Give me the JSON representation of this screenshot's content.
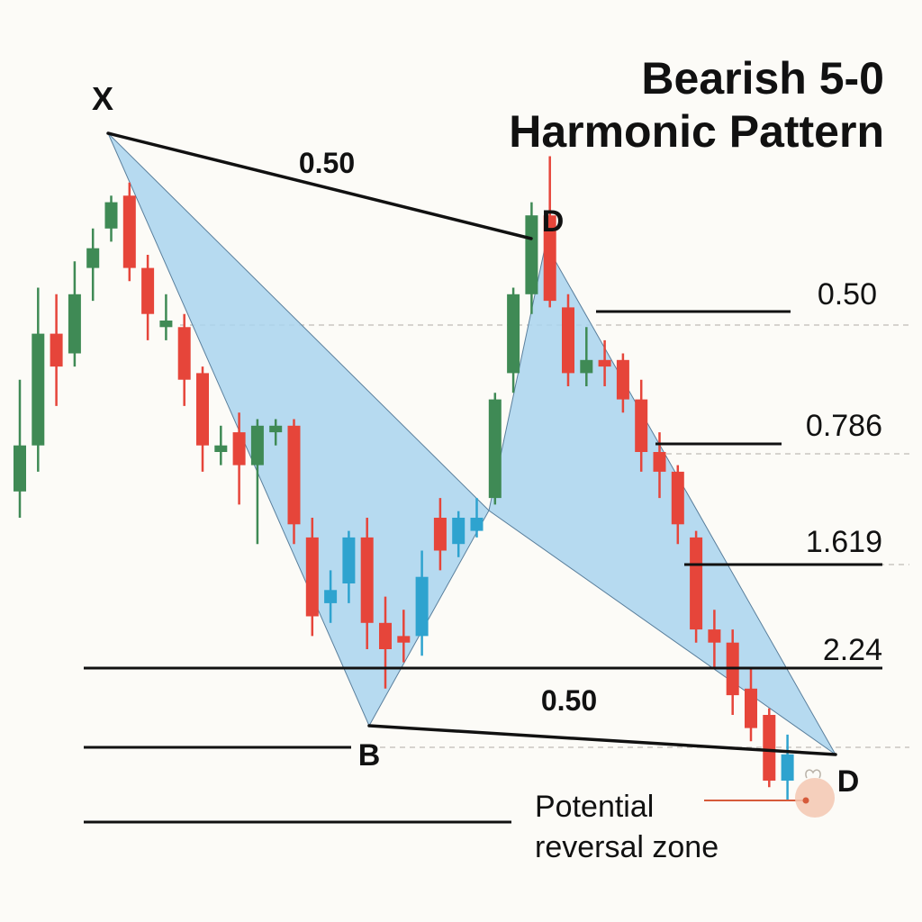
{
  "title": {
    "line1": "Bearish 5-0",
    "line2": "Harmonic Pattern"
  },
  "points": {
    "x": "X",
    "d_top": "D",
    "b": "B",
    "d_bottom": "D"
  },
  "labels": {
    "leg_top": "0.50",
    "leg_bottom": "0.50"
  },
  "ratios": [
    "0.50",
    "0.786",
    "1.619",
    "2.24"
  ],
  "annotation": {
    "line1": "Potential",
    "line2": "reversal zone"
  },
  "colors": {
    "background": "#fcfbf7",
    "bullish": "#3f8a55",
    "bearish": "#e6453a",
    "neutral": "#2ea3cf",
    "pattern_fill": "#a9d3ef",
    "line": "#111111",
    "marker": "#f3c7b1",
    "marker_line": "#d65a3a"
  },
  "chart_data": {
    "type": "candlestick",
    "candles": [
      {
        "type": "bull",
        "o": 4,
        "h": 21,
        "c": 11,
        "l": 0
      },
      {
        "type": "bull",
        "o": 11,
        "h": 35,
        "c": 28,
        "l": 7
      },
      {
        "type": "bear",
        "o": 28,
        "h": 34,
        "c": 23,
        "l": 17
      },
      {
        "type": "bull",
        "o": 25,
        "h": 39,
        "c": 34,
        "l": 23
      },
      {
        "type": "bull",
        "o": 38,
        "h": 44,
        "c": 41,
        "l": 33
      },
      {
        "type": "bull",
        "o": 44,
        "h": 49,
        "c": 48,
        "l": 42
      },
      {
        "type": "bear",
        "o": 49,
        "h": 51,
        "c": 38,
        "l": 36
      },
      {
        "type": "bear",
        "o": 38,
        "h": 40,
        "c": 31,
        "l": 27
      },
      {
        "type": "doji",
        "o": 30,
        "h": 34,
        "c": 29,
        "l": 27
      },
      {
        "type": "bear",
        "o": 29,
        "h": 31,
        "c": 21,
        "l": 17
      },
      {
        "type": "bear",
        "o": 22,
        "h": 23,
        "c": 11,
        "l": 7
      },
      {
        "type": "doji",
        "o": 11,
        "h": 14,
        "c": 10,
        "l": 8
      },
      {
        "type": "bear",
        "o": 13,
        "h": 16,
        "c": 8,
        "l": 2
      },
      {
        "type": "bull",
        "o": 8,
        "h": 15,
        "c": 14,
        "l": -4
      },
      {
        "type": "doji",
        "o": 14,
        "h": 15,
        "c": 13,
        "l": 11
      },
      {
        "type": "bear",
        "o": 14,
        "h": 15,
        "c": -1,
        "l": -4
      },
      {
        "type": "bear",
        "o": -3,
        "h": 0,
        "c": -15,
        "l": -18
      },
      {
        "type": "blue",
        "o": -11,
        "h": -8,
        "c": -13,
        "l": -16
      },
      {
        "type": "blue",
        "o": -10,
        "h": -2,
        "c": -3,
        "l": -13
      },
      {
        "type": "bear",
        "o": -3,
        "h": 0,
        "c": -16,
        "l": -20
      },
      {
        "type": "bear",
        "o": -16,
        "h": -12,
        "c": -20,
        "l": -26
      },
      {
        "type": "bear",
        "o": -18,
        "h": -14,
        "c": -19,
        "l": -22
      },
      {
        "type": "blue",
        "o": -18,
        "h": -5,
        "c": -9,
        "l": -21
      },
      {
        "type": "bear",
        "o": -5,
        "h": 3,
        "c": 0,
        "l": -8
      },
      {
        "type": "blue",
        "o": 0,
        "h": 1,
        "c": -4,
        "l": -6
      },
      {
        "type": "blue",
        "o": -2,
        "h": 3,
        "c": 0,
        "l": -3
      },
      {
        "type": "bull",
        "o": 3,
        "h": 19,
        "c": 18,
        "l": 2
      },
      {
        "type": "bull",
        "o": 22,
        "h": 35,
        "c": 34,
        "l": 19
      },
      {
        "type": "bull",
        "o": 34,
        "h": 48,
        "c": 46,
        "l": 31
      },
      {
        "type": "bear",
        "o": 46,
        "h": 55,
        "c": 33,
        "l": 32
      },
      {
        "type": "bear",
        "o": 32,
        "h": 34,
        "c": 22,
        "l": 20
      },
      {
        "type": "doji",
        "o": 24,
        "h": 29,
        "c": 22,
        "l": 20
      },
      {
        "type": "bear",
        "o": 24,
        "h": 27,
        "c": 23,
        "l": 20
      },
      {
        "type": "bear",
        "o": 24,
        "h": 25,
        "c": 18,
        "l": 16
      },
      {
        "type": "bear",
        "o": 18,
        "h": 21,
        "c": 10,
        "l": 7
      },
      {
        "type": "bear",
        "o": 10,
        "h": 13,
        "c": 7,
        "l": 3
      },
      {
        "type": "bear",
        "o": 7,
        "h": 8,
        "c": -1,
        "l": -4
      },
      {
        "type": "bear",
        "o": -3,
        "h": -2,
        "c": -17,
        "l": -19
      },
      {
        "type": "bear",
        "o": -17,
        "h": -14,
        "c": -19,
        "l": -23
      },
      {
        "type": "bear",
        "o": -19,
        "h": -17,
        "c": -27,
        "l": -30
      },
      {
        "type": "bear",
        "o": -26,
        "h": -23,
        "c": -32,
        "l": -34
      },
      {
        "type": "bear",
        "o": -30,
        "h": -29,
        "c": -40,
        "l": -41
      },
      {
        "type": "blue",
        "o": -40,
        "h": -33,
        "c": -36,
        "l": -43
      }
    ]
  }
}
